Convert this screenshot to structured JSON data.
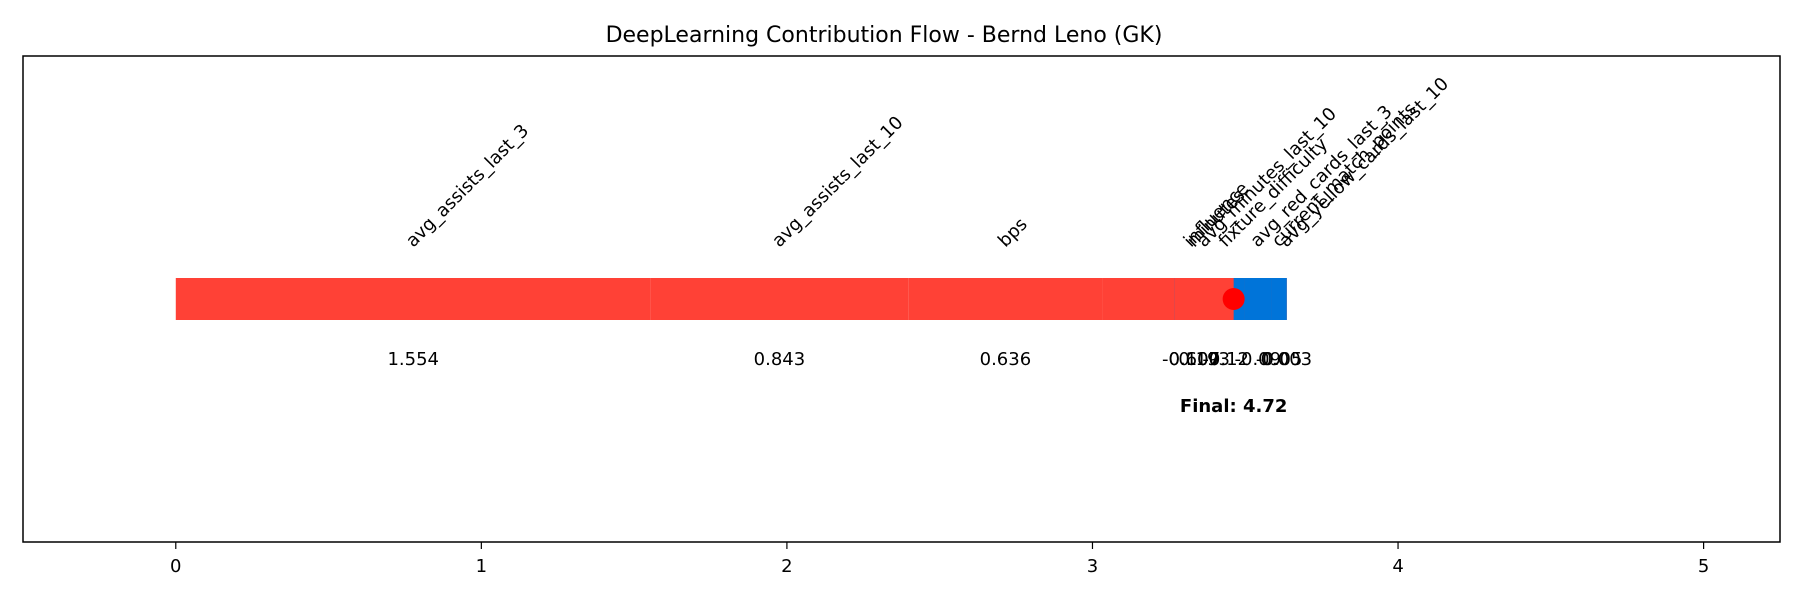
{
  "chart_data": {
    "type": "bar",
    "orientation": "horizontal-stacked-flow",
    "title": "DeepLearning Contribution Flow - Bernd Leno (GK)",
    "xlabel": "",
    "ylabel": "",
    "xlim": [
      -0.5,
      5.25
    ],
    "x_ticks": [
      0,
      1,
      2,
      3,
      4,
      5
    ],
    "grid": false,
    "segments": [
      {
        "feature": "avg_assists_last_3",
        "value": 1.554,
        "value_label": "1.554",
        "color": "#ff4136"
      },
      {
        "feature": "avg_assists_last_10",
        "value": 0.843,
        "value_label": "0.843",
        "color": "#ff4136"
      },
      {
        "feature": "bps",
        "value": 0.636,
        "value_label": "0.636",
        "color": "#ff4136"
      },
      {
        "feature": "minutes",
        "value": 0.6,
        "value_label": "0.600",
        "color": "#ff4136"
      },
      {
        "feature": "avg_yellow_cards_last_10",
        "value": 0.003,
        "value_label": "0.003",
        "color": "#ff4136"
      },
      {
        "feature": "current_match_points",
        "value": -0.05,
        "value_label": "-0.05",
        "color": "#0074d9"
      },
      {
        "feature": "avg_red_cards_last_3",
        "value": -0.09,
        "value_label": "-0.09",
        "color": "#0074d9"
      },
      {
        "feature": "fixture_difficulty",
        "value": -0.12,
        "value_label": "-0.12",
        "color": "#0074d9"
      },
      {
        "feature": "influence",
        "value": -0.107,
        "value_label": "-0.107",
        "color": "#0074d9"
      },
      {
        "feature": "avg_minutes_last_10",
        "value": 0.193,
        "value_label": "0.193",
        "color": "#ff4136"
      }
    ],
    "final_value": 4.72,
    "final_label": "Final: 4.72",
    "final_marker_color": "#ff0000"
  }
}
